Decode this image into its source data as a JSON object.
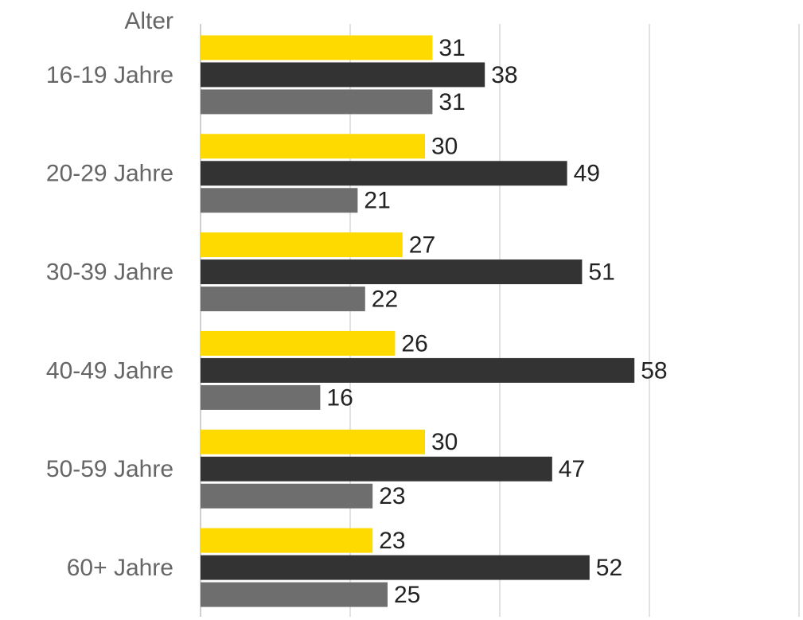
{
  "chart_data": {
    "type": "hbar",
    "ylabel": "Alter",
    "categories": [
      "16-19 Jahre",
      "20-29 Jahre",
      "30-39 Jahre",
      "40-49 Jahre",
      "50-59 Jahre",
      "60+ Jahre"
    ],
    "series": [
      {
        "color": "#FFDA00",
        "values": [
          31,
          30,
          27,
          26,
          30,
          23
        ]
      },
      {
        "color": "#333333",
        "values": [
          38,
          49,
          51,
          58,
          47,
          52
        ]
      },
      {
        "color": "#6E6E6E",
        "values": [
          31,
          21,
          22,
          16,
          23,
          25
        ]
      }
    ],
    "xlim": [
      0,
      80
    ],
    "xticks": [
      0,
      20,
      40,
      60,
      80
    ],
    "grid": true
  }
}
